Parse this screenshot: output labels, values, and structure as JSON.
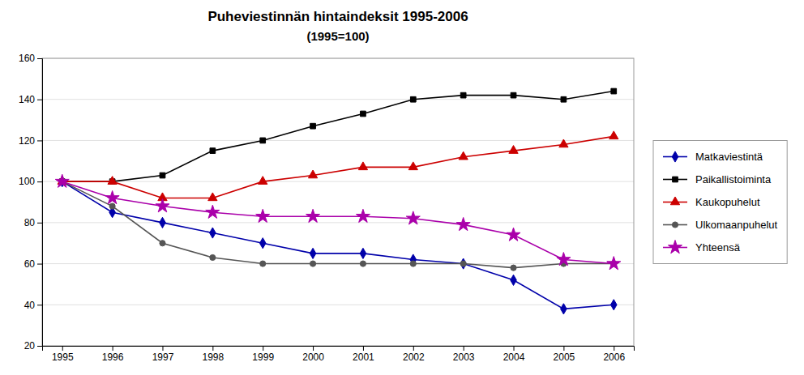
{
  "chart_data": {
    "type": "line",
    "title": "Puheviestinnän hintaindeksit 1995-2006",
    "subtitle": "(1995=100)",
    "x": [
      1995,
      1996,
      1997,
      1998,
      1999,
      2000,
      2001,
      2002,
      2003,
      2004,
      2005,
      2006
    ],
    "series": [
      {
        "name": "Matkaviestintä",
        "color": "#0000AA",
        "marker": "diamond",
        "values": [
          100,
          85,
          80,
          75,
          70,
          65,
          65,
          62,
          60,
          52,
          38,
          40
        ]
      },
      {
        "name": "Paikallistoiminta",
        "color": "#000000",
        "marker": "square",
        "values": [
          100,
          100,
          103,
          115,
          120,
          127,
          133,
          140,
          142,
          142,
          140,
          144
        ]
      },
      {
        "name": "Kaukopuhelut",
        "color": "#CC0000",
        "marker": "triangle",
        "values": [
          100,
          100,
          92,
          92,
          100,
          103,
          107,
          107,
          112,
          115,
          118,
          122
        ]
      },
      {
        "name": "Ulkomaanpuhelut",
        "color": "#555555",
        "marker": "circle",
        "values": [
          100,
          88,
          70,
          63,
          60,
          60,
          60,
          60,
          60,
          58,
          60,
          60
        ]
      },
      {
        "name": "Yhteensä",
        "color": "#AA00AA",
        "marker": "star",
        "values": [
          100,
          92,
          88,
          85,
          83,
          83,
          83,
          82,
          79,
          74,
          62,
          60
        ]
      }
    ],
    "xlim": [
      1994.6,
      2006.4
    ],
    "xticks": [
      1995,
      1996,
      1997,
      1998,
      1999,
      2000,
      2001,
      2002,
      2003,
      2004,
      2005,
      2006
    ],
    "ylim": [
      20,
      160
    ],
    "yticks": [
      20,
      40,
      60,
      80,
      100,
      120,
      140,
      160
    ],
    "grid": "y",
    "legend": "right"
  }
}
